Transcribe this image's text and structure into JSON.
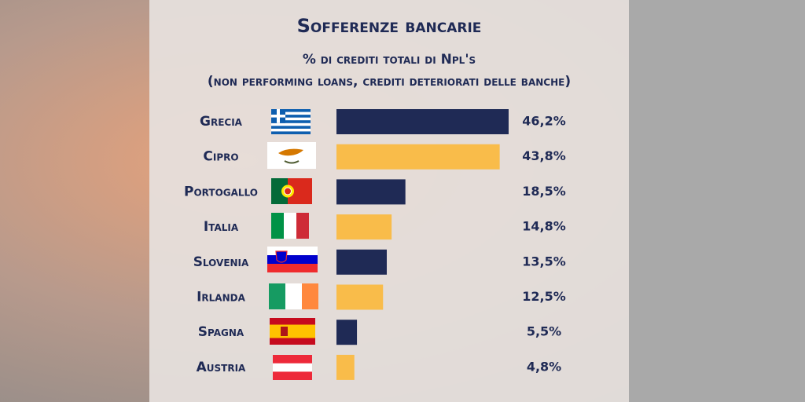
{
  "chart_data": {
    "type": "bar",
    "orientation": "horizontal",
    "title": "Sofferenze bancarie",
    "subtitle": [
      "% di crediti totali di Npl's",
      "(non performing loans, crediti deteriorati delle banche)"
    ],
    "categories": [
      "Grecia",
      "Cipro",
      "Portogallo",
      "Italia",
      "Slovenia",
      "Irlanda",
      "Spagna",
      "Austria"
    ],
    "values": [
      46.2,
      43.8,
      18.5,
      14.8,
      13.5,
      12.5,
      5.5,
      4.8
    ],
    "value_labels": [
      "46,2%",
      "43,8%",
      "18,5%",
      "14,8%",
      "13,5%",
      "12,5%",
      "5,5%",
      "4,8%"
    ],
    "colors": [
      "#1f2a55",
      "#f9bc4a",
      "#1f2a55",
      "#f9bc4a",
      "#1f2a55",
      "#f9bc4a",
      "#1f2a55",
      "#f9bc4a"
    ]
  }
}
